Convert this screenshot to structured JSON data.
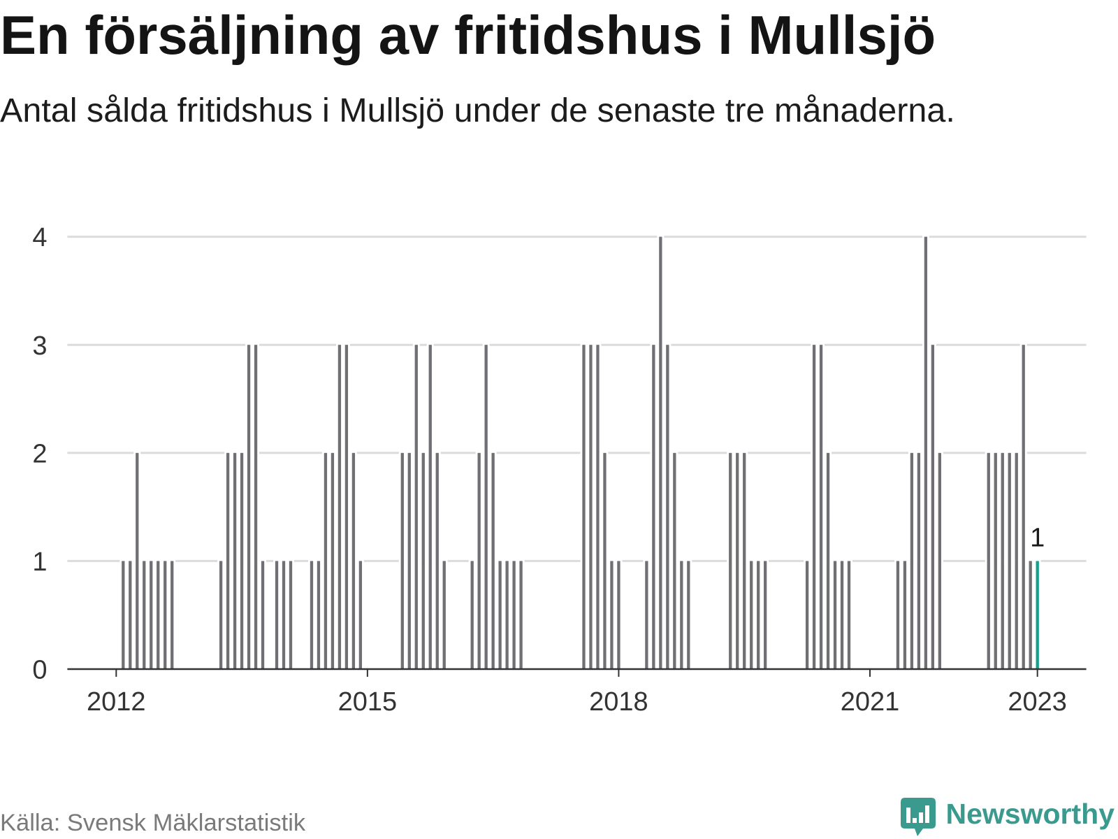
{
  "chart_data": {
    "type": "bar",
    "title": "En försäljning av fritidshus i Mullsjö",
    "subtitle": "Antal sålda fritidshus i Mullsjö under de senaste tre månaderna.",
    "x": [
      "2012-01",
      "2012-02",
      "2012-03",
      "2012-04",
      "2012-05",
      "2012-06",
      "2012-07",
      "2012-08",
      "2012-09",
      "2012-10",
      "2012-11",
      "2012-12",
      "2013-01",
      "2013-02",
      "2013-03",
      "2013-04",
      "2013-05",
      "2013-06",
      "2013-07",
      "2013-08",
      "2013-09",
      "2013-10",
      "2013-11",
      "2013-12",
      "2014-01",
      "2014-02",
      "2014-03",
      "2014-04",
      "2014-05",
      "2014-06",
      "2014-07",
      "2014-08",
      "2014-09",
      "2014-10",
      "2014-11",
      "2014-12",
      "2015-01",
      "2015-02",
      "2015-03",
      "2015-04",
      "2015-05",
      "2015-06",
      "2015-07",
      "2015-08",
      "2015-09",
      "2015-10",
      "2015-11",
      "2015-12",
      "2016-01",
      "2016-02",
      "2016-03",
      "2016-04",
      "2016-05",
      "2016-06",
      "2016-07",
      "2016-08",
      "2016-09",
      "2016-10",
      "2016-11",
      "2016-12",
      "2017-01",
      "2017-02",
      "2017-03",
      "2017-04",
      "2017-05",
      "2017-06",
      "2017-07",
      "2017-08",
      "2017-09",
      "2017-10",
      "2017-11",
      "2017-12",
      "2018-01",
      "2018-02",
      "2018-03",
      "2018-04",
      "2018-05",
      "2018-06",
      "2018-07",
      "2018-08",
      "2018-09",
      "2018-10",
      "2018-11",
      "2018-12",
      "2019-01",
      "2019-02",
      "2019-03",
      "2019-04",
      "2019-05",
      "2019-06",
      "2019-07",
      "2019-08",
      "2019-09",
      "2019-10",
      "2019-11",
      "2019-12",
      "2020-01",
      "2020-02",
      "2020-03",
      "2020-04",
      "2020-05",
      "2020-06",
      "2020-07",
      "2020-08",
      "2020-09",
      "2020-10",
      "2020-11",
      "2020-12",
      "2021-01",
      "2021-02",
      "2021-03",
      "2021-04",
      "2021-05",
      "2021-06",
      "2021-07",
      "2021-08",
      "2021-09",
      "2021-10",
      "2021-11",
      "2021-12",
      "2022-01",
      "2022-02",
      "2022-03",
      "2022-04",
      "2022-05",
      "2022-06",
      "2022-07",
      "2022-08",
      "2022-09",
      "2022-10",
      "2022-11",
      "2022-12",
      "2023-01"
    ],
    "values": [
      0,
      1,
      1,
      2,
      1,
      1,
      1,
      1,
      1,
      0,
      0,
      0,
      0,
      0,
      0,
      1,
      2,
      2,
      2,
      3,
      3,
      1,
      0,
      1,
      1,
      1,
      0,
      0,
      1,
      1,
      2,
      2,
      3,
      3,
      2,
      1,
      0,
      0,
      0,
      0,
      0,
      2,
      2,
      3,
      2,
      3,
      2,
      1,
      0,
      0,
      0,
      1,
      2,
      3,
      2,
      1,
      1,
      1,
      1,
      0,
      0,
      0,
      0,
      0,
      0,
      0,
      0,
      3,
      3,
      3,
      2,
      1,
      1,
      0,
      0,
      0,
      1,
      3,
      4,
      3,
      2,
      1,
      1,
      0,
      0,
      0,
      0,
      0,
      2,
      2,
      2,
      1,
      1,
      1,
      0,
      0,
      0,
      0,
      0,
      1,
      3,
      3,
      2,
      1,
      1,
      1,
      0,
      0,
      0,
      0,
      0,
      0,
      1,
      1,
      2,
      2,
      4,
      3,
      2,
      0,
      0,
      0,
      0,
      0,
      0,
      2,
      2,
      2,
      2,
      2,
      3,
      1,
      1
    ],
    "xlim": [
      "2011-06",
      "2023-08"
    ],
    "ylim": [
      0,
      4
    ],
    "x_ticks": [
      "2012",
      "2015",
      "2018",
      "2021",
      "2023"
    ],
    "y_ticks": [
      0,
      1,
      2,
      3,
      4
    ],
    "grid": true,
    "bar_color": "#707074",
    "grid_color": "#dcdcdc",
    "axis_color": "#333333",
    "highlight": {
      "x": "2023-01",
      "label": "1",
      "color": "#14a08f"
    }
  },
  "footer": {
    "source": "Källa: Svensk Mäklarstatistik",
    "brand": "Newsworthy",
    "brand_icon": "newsworthy-logo-icon",
    "brand_color": "#3b9a8e"
  }
}
